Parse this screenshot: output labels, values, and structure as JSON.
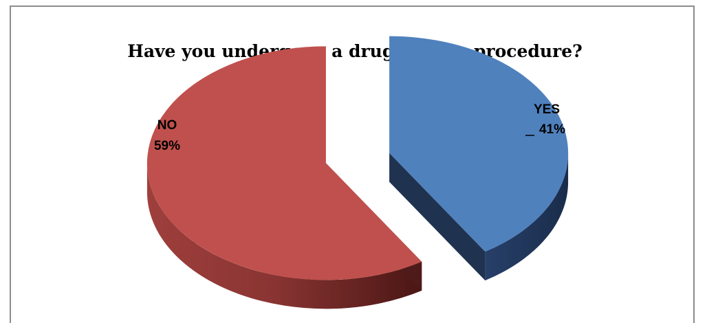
{
  "chart_data": {
    "type": "pie",
    "style": "3d-exploded",
    "title": "Have you undergone a  drug testing procedure?",
    "slices": [
      {
        "label": "YES",
        "value": 41,
        "value_label": "41%",
        "color": "#4F81BD",
        "shade": "#1F3350"
      },
      {
        "label": "NO",
        "value": 59,
        "value_label": "59%",
        "color": "#C0504D",
        "shade": "#4E1B1A"
      }
    ],
    "legend": "none"
  }
}
